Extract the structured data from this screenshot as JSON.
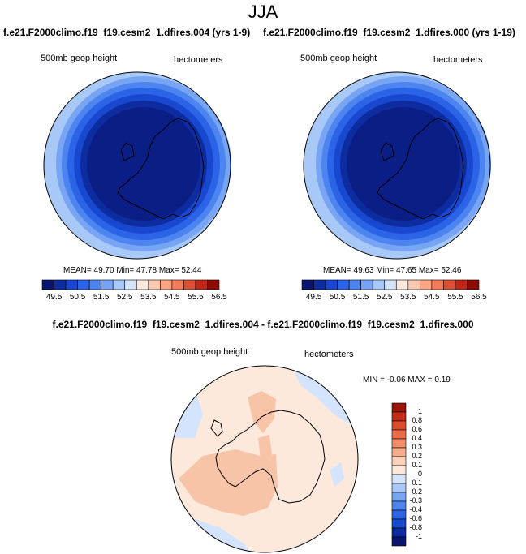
{
  "title": "JJA",
  "panel1": {
    "subtitle": "f.e21.F2000climo.f19_f19.cesm2_1.dfires.004 (yrs 1-9)",
    "variable": "500mb geop height",
    "units": "hectometers",
    "stats": "MEAN=  49.70  Min=  47.78  Max=  52.44"
  },
  "panel2": {
    "subtitle": "f.e21.F2000climo.f19_f19.cesm2_1.dfires.000 (yrs 1-19)",
    "variable": "500mb geop height",
    "units": "hectometers",
    "stats": "MEAN=  49.63  Min=  47.65  Max=  52.46"
  },
  "diff": {
    "subtitle": "f.e21.F2000climo.f19_f19.cesm2_1.dfires.004 - f.e21.F2000climo.f19_f19.cesm2_1.dfires.000",
    "variable": "500mb geop height",
    "units": "hectometers",
    "stats": "MIN = -0.06 MAX =  0.19"
  },
  "main_colorbar": {
    "ticks": [
      "49.5",
      "50.5",
      "51.5",
      "52.5",
      "53.5",
      "54.5",
      "55.5",
      "56.5"
    ],
    "colors": [
      "#08146e",
      "#0c2ca0",
      "#1848d0",
      "#2c64e8",
      "#4c84f0",
      "#78a4f4",
      "#a8c8f8",
      "#d4e4fc",
      "#fde8dc",
      "#fcc8b0",
      "#fca484",
      "#f07c5c",
      "#dc5034",
      "#c02818",
      "#8c0c04"
    ]
  },
  "diff_colorbar": {
    "ticks": [
      "1",
      "0.8",
      "0.6",
      "0.4",
      "0.3",
      "0.2",
      "0.1",
      "0",
      "-0.1",
      "-0.2",
      "-0.3",
      "-0.4",
      "-0.6",
      "-0.8",
      "-1"
    ],
    "colors": [
      "#9c1408",
      "#c42c18",
      "#dc4c2c",
      "#ec6c48",
      "#f48c68",
      "#f8ac8c",
      "#fcd0b8",
      "#fde8dc",
      "#d4e4fc",
      "#a8c8f8",
      "#78a4f4",
      "#4c84f0",
      "#2c64e8",
      "#1848d0",
      "#0c2ca0",
      "#08146e"
    ]
  },
  "map_colors": {
    "ring_outer": "#a8c8f8",
    "ring_2": "#78a4f4",
    "ring_3": "#4c84f0",
    "ring_4": "#2c64e8",
    "ring_5": "#1848d0",
    "ring_6": "#0c2ca0",
    "core": "#0a1e86",
    "diff_bg": "#fde8dc",
    "diff_pos": "#f8c4a8",
    "diff_neg": "#d4e4fc"
  }
}
